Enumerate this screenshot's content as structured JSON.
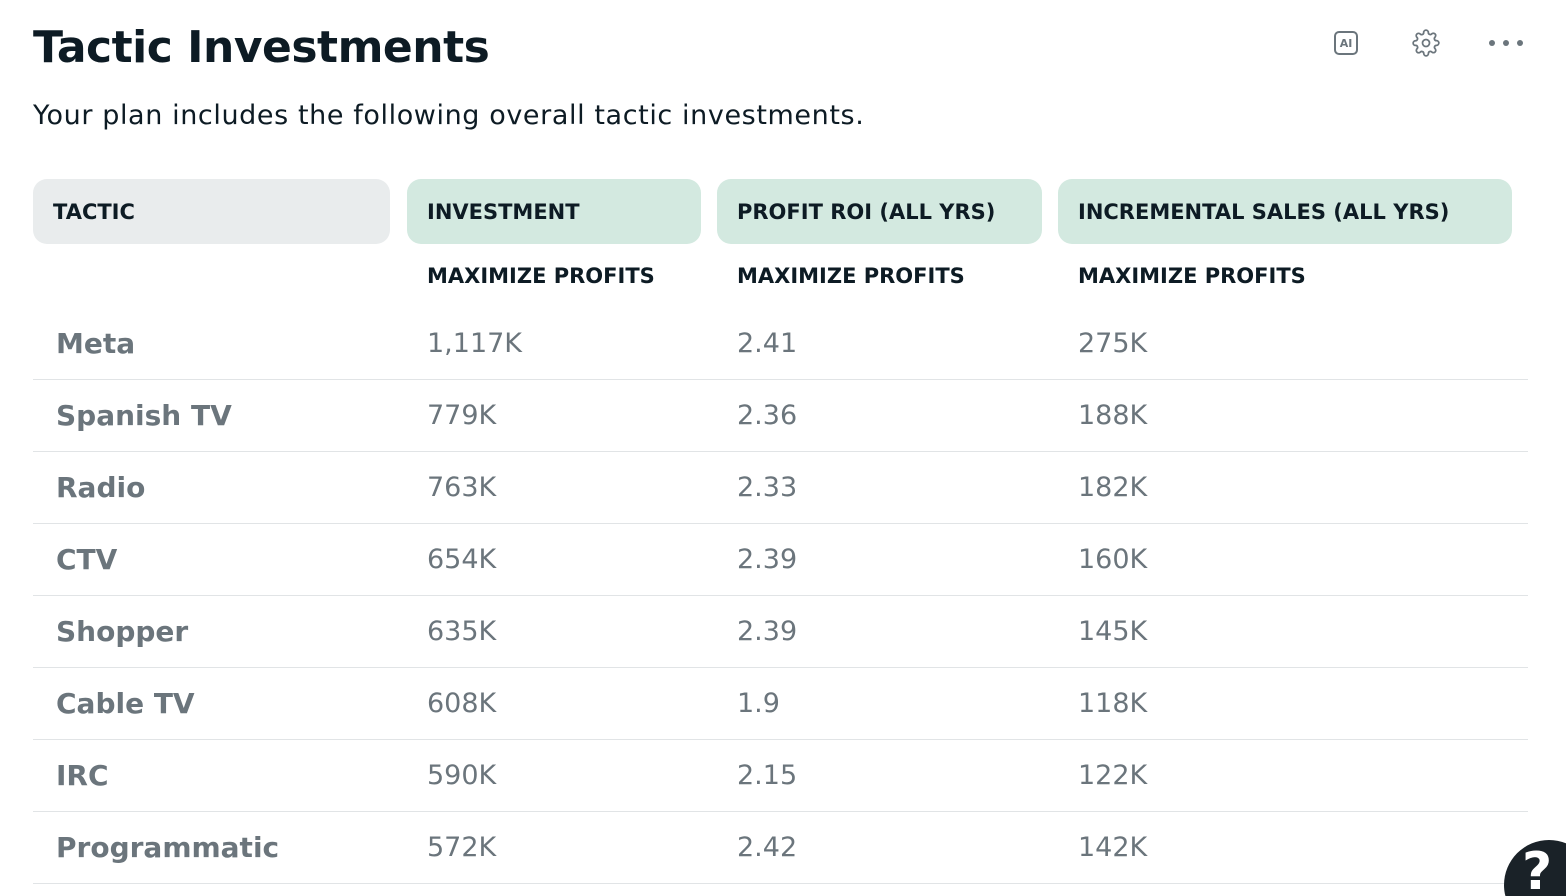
{
  "header": {
    "title": "Tactic Investments",
    "subtitle": "Your plan includes the following overall tactic investments."
  },
  "toolbar": {
    "ai_icon": "ai-icon",
    "ai_label": "AI",
    "settings_icon": "gear-icon",
    "more_icon": "more-horizontal-icon"
  },
  "table": {
    "columns": [
      "TACTIC",
      "INVESTMENT",
      "PROFIT ROI (ALL YRS)",
      "INCREMENTAL SALES (ALL YRS)"
    ],
    "subheaders": [
      "",
      "MAXIMIZE PROFITS",
      "MAXIMIZE PROFITS",
      "MAXIMIZE PROFITS"
    ],
    "rows": [
      {
        "tactic": "Meta",
        "investment": "1,117K",
        "roi": "2.41",
        "sales": "275K"
      },
      {
        "tactic": "Spanish TV",
        "investment": "779K",
        "roi": "2.36",
        "sales": "188K"
      },
      {
        "tactic": "Radio",
        "investment": "763K",
        "roi": "2.33",
        "sales": "182K"
      },
      {
        "tactic": "CTV",
        "investment": "654K",
        "roi": "2.39",
        "sales": "160K"
      },
      {
        "tactic": "Shopper",
        "investment": "635K",
        "roi": "2.39",
        "sales": "145K"
      },
      {
        "tactic": "Cable TV",
        "investment": "608K",
        "roi": "1.9",
        "sales": "118K"
      },
      {
        "tactic": "IRC",
        "investment": "590K",
        "roi": "2.15",
        "sales": "122K"
      },
      {
        "tactic": "Programmatic",
        "investment": "572K",
        "roi": "2.42",
        "sales": "142K"
      }
    ]
  },
  "help": {
    "icon": "help-icon",
    "glyph": "?"
  },
  "colors": {
    "header_neutral": "#e9eced",
    "header_accent": "#d3e9e0",
    "muted_text": "#6b757c",
    "dark_text": "#0d1b24"
  }
}
